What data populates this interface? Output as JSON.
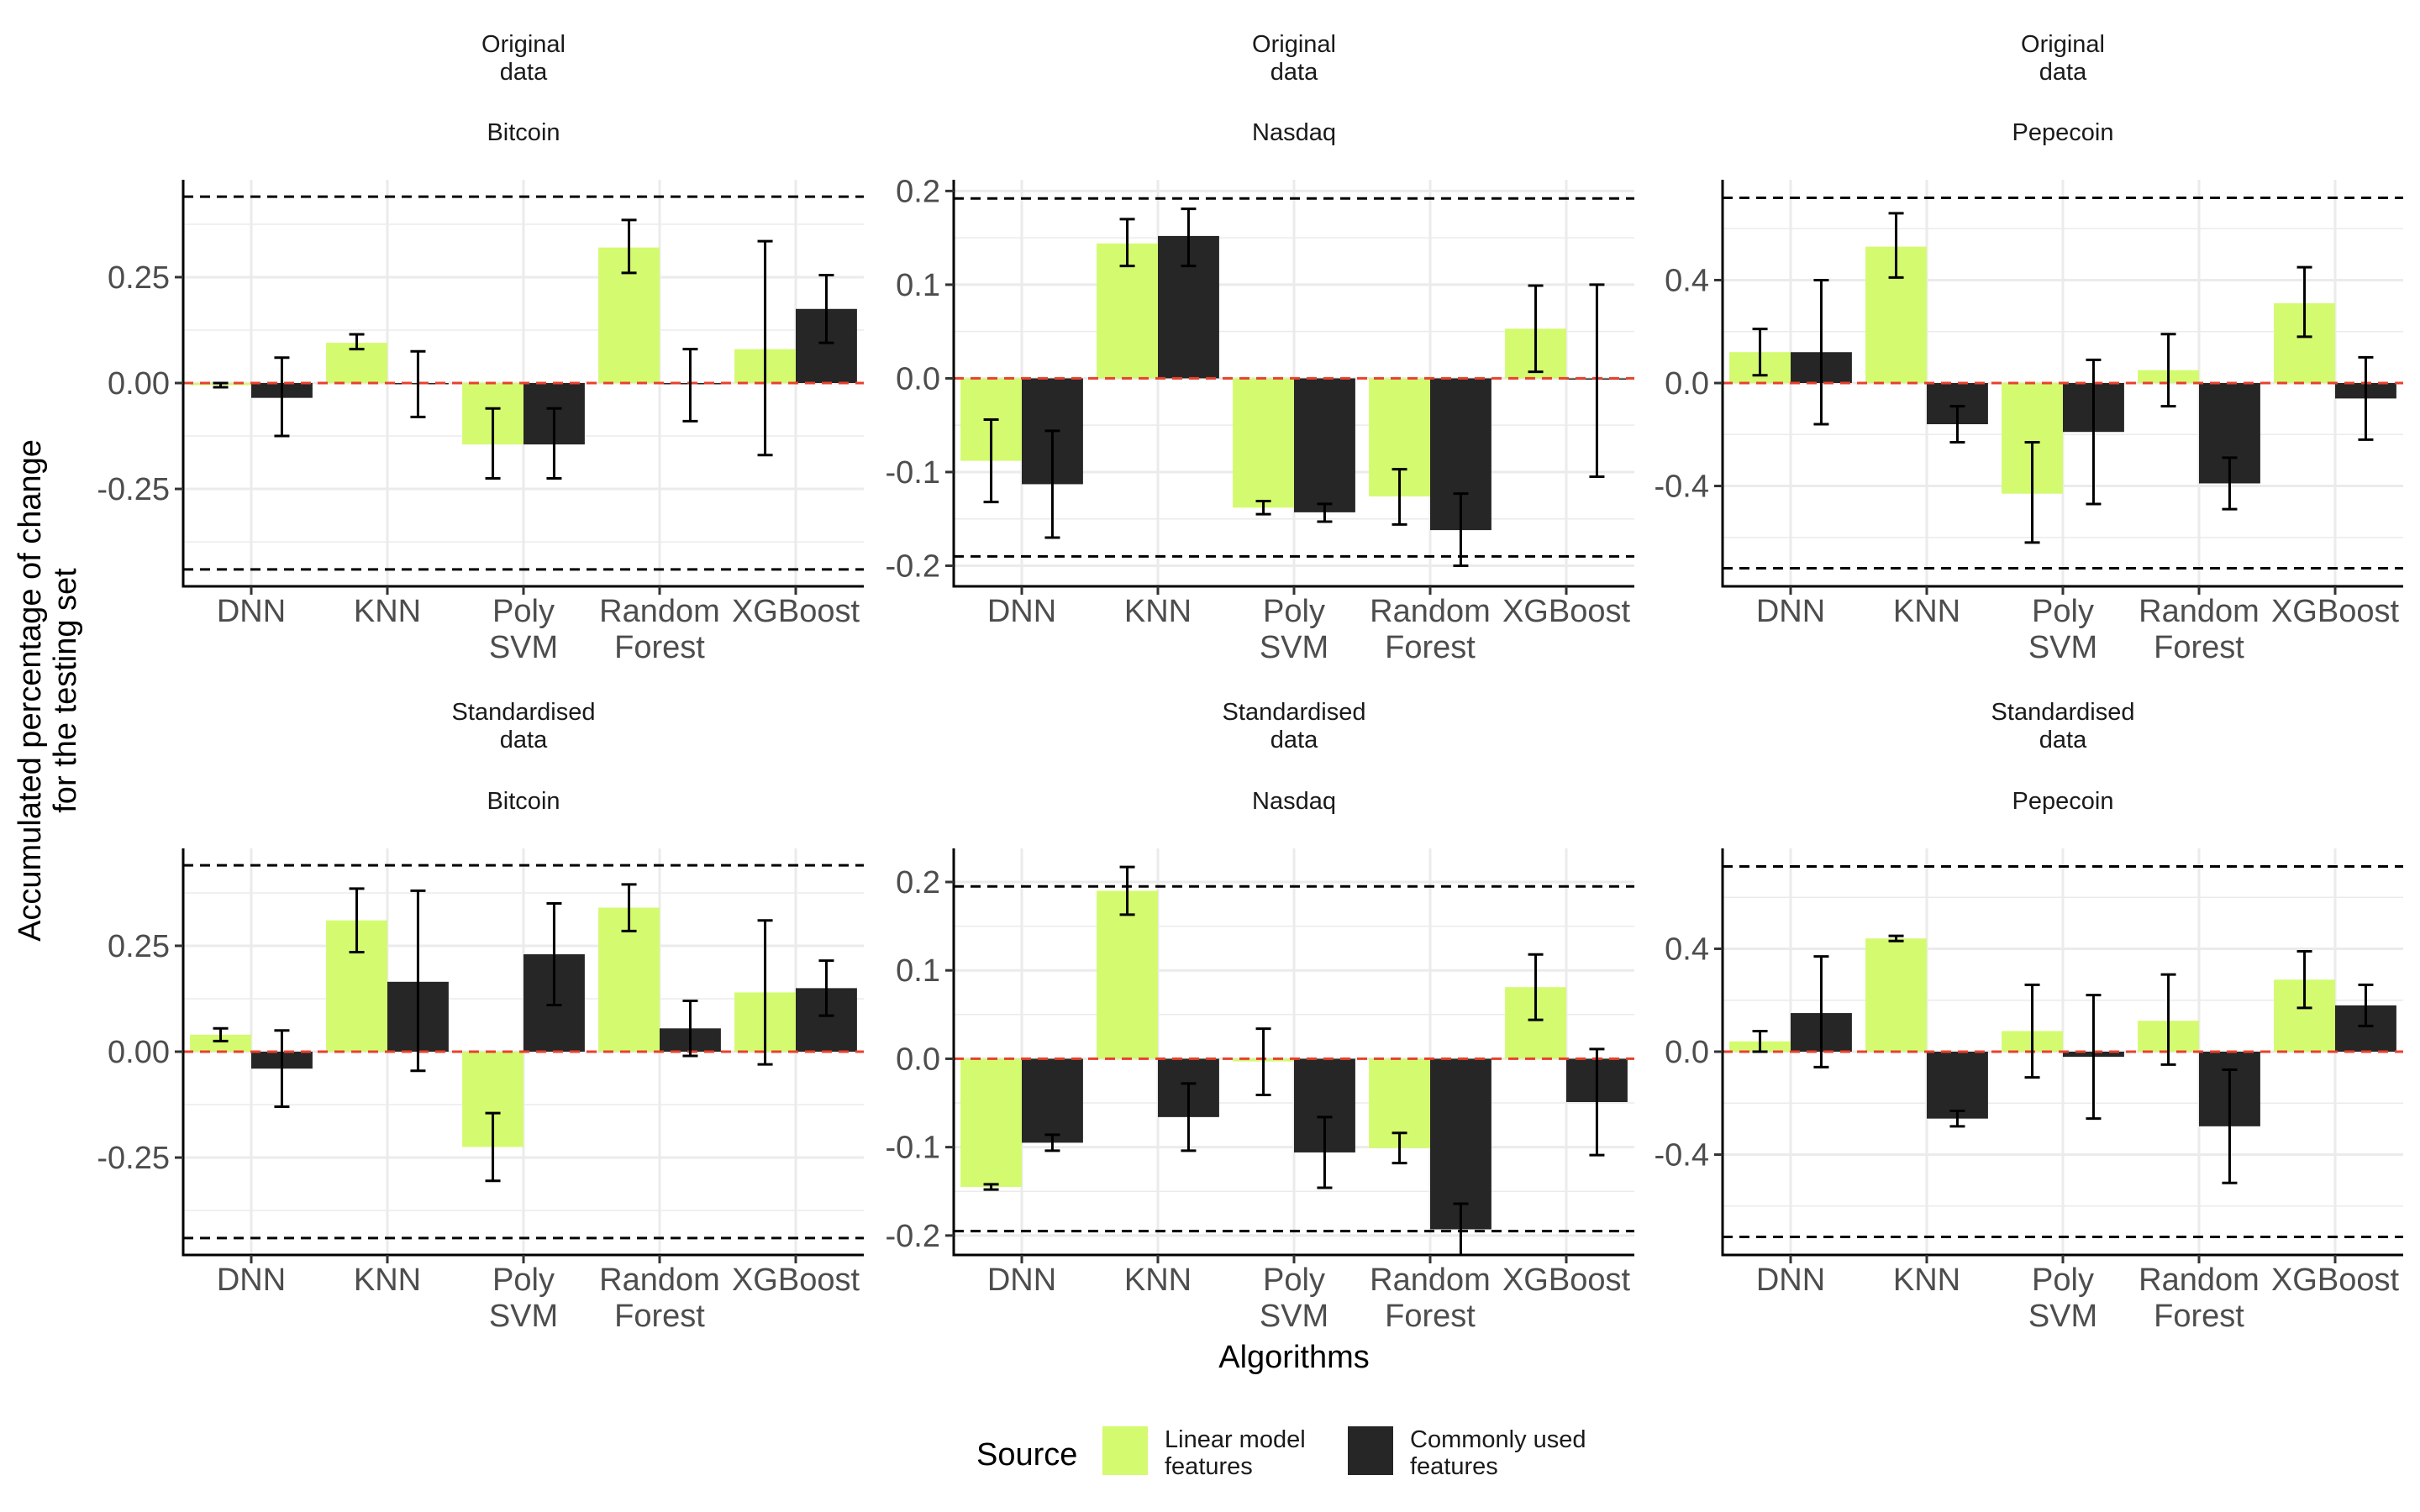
{
  "figure": {
    "xlabel": "Algorithms",
    "ylabel_lines": [
      "Accumulated percentage of change",
      "for the testing set"
    ],
    "colors": {
      "linear": "#d4fa6f",
      "common": "#262626",
      "zero_line": "#e8412c",
      "threshold_line": "#000000",
      "grid": "#ebebeb",
      "axis": "#000000"
    },
    "legend": {
      "title": "Source",
      "items": [
        {
          "key": "linear",
          "lines": [
            "Linear model",
            "features"
          ]
        },
        {
          "key": "common",
          "lines": [
            "Commonly used",
            "features"
          ]
        }
      ]
    }
  },
  "chart_data": [
    {
      "type": "bar",
      "group": "Original data",
      "group_lines": [
        "Original",
        "data"
      ],
      "title": "Bitcoin",
      "categories": [
        [
          "DNN"
        ],
        [
          "KNN"
        ],
        [
          "Poly",
          "SVM"
        ],
        [
          "Random",
          "Forest"
        ],
        [
          "XGBoost"
        ]
      ],
      "ylim": [
        -0.48,
        0.48
      ],
      "yticks": [
        -0.25,
        0.0,
        0.25
      ],
      "ytick_labels": [
        "-0.25",
        "0.00",
        "0.25"
      ],
      "minor_yticks": [
        -0.375,
        -0.125,
        0.125,
        0.375
      ],
      "thresholds": [
        0.44,
        -0.44
      ],
      "series": [
        {
          "name": "Linear model features",
          "key": "linear",
          "values": [
            -0.005,
            0.095,
            -0.145,
            0.32,
            0.08
          ],
          "err_low": [
            -0.01,
            0.08,
            -0.225,
            0.26,
            -0.17
          ],
          "err_high": [
            0.0,
            0.115,
            -0.06,
            0.385,
            0.335
          ]
        },
        {
          "name": "Commonly used features",
          "key": "common",
          "values": [
            -0.035,
            0.0,
            -0.145,
            -0.003,
            0.175
          ],
          "err_low": [
            -0.125,
            -0.08,
            -0.225,
            -0.09,
            0.095
          ],
          "err_high": [
            0.06,
            0.075,
            -0.06,
            0.08,
            0.255
          ]
        }
      ]
    },
    {
      "type": "bar",
      "group": "Original data",
      "group_lines": [
        "Original",
        "data"
      ],
      "title": "Nasdaq",
      "categories": [
        [
          "DNN"
        ],
        [
          "KNN"
        ],
        [
          "Poly",
          "SVM"
        ],
        [
          "Random",
          "Forest"
        ],
        [
          "XGBoost"
        ]
      ],
      "ylim": [
        -0.222,
        0.212
      ],
      "yticks": [
        -0.2,
        -0.1,
        0.0,
        0.1,
        0.2
      ],
      "ytick_labels": [
        "-0.2",
        "-0.1",
        "0.0",
        "0.1",
        "0.2"
      ],
      "minor_yticks": [
        -0.15,
        -0.05,
        0.05,
        0.15
      ],
      "thresholds": [
        0.192,
        -0.19
      ],
      "series": [
        {
          "name": "Linear model features",
          "key": "linear",
          "values": [
            -0.088,
            0.144,
            -0.138,
            -0.126,
            0.053
          ],
          "err_low": [
            -0.132,
            0.12,
            -0.145,
            -0.156,
            0.007
          ],
          "err_high": [
            -0.044,
            0.17,
            -0.131,
            -0.097,
            0.099
          ]
        },
        {
          "name": "Commonly used features",
          "key": "common",
          "values": [
            -0.113,
            0.152,
            -0.143,
            -0.162,
            -0.001
          ],
          "err_low": [
            -0.17,
            0.12,
            -0.153,
            -0.2,
            -0.105
          ],
          "err_high": [
            -0.056,
            0.181,
            -0.134,
            -0.123,
            0.1
          ]
        }
      ]
    },
    {
      "type": "bar",
      "group": "Original data",
      "group_lines": [
        "Original",
        "data"
      ],
      "title": "Pepecoin",
      "categories": [
        [
          "DNN"
        ],
        [
          "KNN"
        ],
        [
          "Poly",
          "SVM"
        ],
        [
          "Random",
          "Forest"
        ],
        [
          "XGBoost"
        ]
      ],
      "ylim": [
        -0.79,
        0.79
      ],
      "yticks": [
        -0.4,
        0.0,
        0.4
      ],
      "ytick_labels": [
        "-0.4",
        "0.0",
        "0.4"
      ],
      "minor_yticks": [
        -0.6,
        -0.2,
        0.2,
        0.6
      ],
      "thresholds": [
        0.72,
        -0.72
      ],
      "series": [
        {
          "name": "Linear model features",
          "key": "linear",
          "values": [
            0.12,
            0.53,
            -0.43,
            0.05,
            0.31
          ],
          "err_low": [
            0.03,
            0.41,
            -0.62,
            -0.09,
            0.18
          ],
          "err_high": [
            0.21,
            0.66,
            -0.23,
            0.19,
            0.45
          ]
        },
        {
          "name": "Commonly used features",
          "key": "common",
          "values": [
            0.12,
            -0.16,
            -0.19,
            -0.39,
            -0.06
          ],
          "err_low": [
            -0.16,
            -0.23,
            -0.47,
            -0.49,
            -0.22
          ],
          "err_high": [
            0.4,
            -0.09,
            0.09,
            -0.29,
            0.1
          ]
        }
      ]
    },
    {
      "type": "bar",
      "group": "Standardised data",
      "group_lines": [
        "Standardised",
        "data"
      ],
      "title": "Bitcoin",
      "categories": [
        [
          "DNN"
        ],
        [
          "KNN"
        ],
        [
          "Poly",
          "SVM"
        ],
        [
          "Random",
          "Forest"
        ],
        [
          "XGBoost"
        ]
      ],
      "ylim": [
        -0.48,
        0.48
      ],
      "yticks": [
        -0.25,
        0.0,
        0.25
      ],
      "ytick_labels": [
        "-0.25",
        "0.00",
        "0.25"
      ],
      "minor_yticks": [
        -0.375,
        -0.125,
        0.125,
        0.375
      ],
      "thresholds": [
        0.44,
        -0.44
      ],
      "series": [
        {
          "name": "Linear model features",
          "key": "linear",
          "values": [
            0.04,
            0.31,
            -0.225,
            0.34,
            0.14
          ],
          "err_low": [
            0.025,
            0.235,
            -0.305,
            0.285,
            -0.03
          ],
          "err_high": [
            0.055,
            0.385,
            -0.145,
            0.395,
            0.31
          ]
        },
        {
          "name": "Commonly used features",
          "key": "common",
          "values": [
            -0.04,
            0.165,
            0.23,
            0.055,
            0.15
          ],
          "err_low": [
            -0.13,
            -0.045,
            0.11,
            -0.01,
            0.085
          ],
          "err_high": [
            0.05,
            0.38,
            0.35,
            0.12,
            0.215
          ]
        }
      ]
    },
    {
      "type": "bar",
      "group": "Standardised data",
      "group_lines": [
        "Standardised",
        "data"
      ],
      "title": "Nasdaq",
      "categories": [
        [
          "DNN"
        ],
        [
          "KNN"
        ],
        [
          "Poly",
          "SVM"
        ],
        [
          "Random",
          "Forest"
        ],
        [
          "XGBoost"
        ]
      ],
      "ylim": [
        -0.222,
        0.238
      ],
      "yticks": [
        -0.2,
        -0.1,
        0.0,
        0.1,
        0.2
      ],
      "ytick_labels": [
        "-0.2",
        "-0.1",
        "0.0",
        "0.1",
        "0.2"
      ],
      "minor_yticks": [
        -0.15,
        -0.05,
        0.05,
        0.15
      ],
      "thresholds": [
        0.195,
        -0.195
      ],
      "series": [
        {
          "name": "Linear model features",
          "key": "linear",
          "values": [
            -0.145,
            0.19,
            -0.003,
            -0.101,
            0.081
          ],
          "err_low": [
            -0.148,
            0.163,
            -0.041,
            -0.118,
            0.044
          ],
          "err_high": [
            -0.142,
            0.217,
            0.034,
            -0.084,
            0.118
          ]
        },
        {
          "name": "Commonly used features",
          "key": "common",
          "values": [
            -0.095,
            -0.066,
            -0.106,
            -0.193,
            -0.049
          ],
          "err_low": [
            -0.104,
            -0.104,
            -0.146,
            -0.222,
            -0.109
          ],
          "err_high": [
            -0.086,
            -0.028,
            -0.066,
            -0.164,
            0.011
          ]
        }
      ]
    },
    {
      "type": "bar",
      "group": "Standardised data",
      "group_lines": [
        "Standardised",
        "data"
      ],
      "title": "Pepecoin",
      "categories": [
        [
          "DNN"
        ],
        [
          "KNN"
        ],
        [
          "Poly",
          "SVM"
        ],
        [
          "Random",
          "Forest"
        ],
        [
          "XGBoost"
        ]
      ],
      "ylim": [
        -0.79,
        0.79
      ],
      "yticks": [
        -0.4,
        0.0,
        0.4
      ],
      "ytick_labels": [
        "-0.4",
        "0.0",
        "0.4"
      ],
      "minor_yticks": [
        -0.6,
        -0.2,
        0.2,
        0.6
      ],
      "thresholds": [
        0.72,
        -0.72
      ],
      "series": [
        {
          "name": "Linear model features",
          "key": "linear",
          "values": [
            0.04,
            0.44,
            0.08,
            0.12,
            0.28
          ],
          "err_low": [
            0.0,
            0.43,
            -0.1,
            -0.05,
            0.17
          ],
          "err_high": [
            0.08,
            0.45,
            0.26,
            0.3,
            0.39
          ]
        },
        {
          "name": "Commonly used features",
          "key": "common",
          "values": [
            0.15,
            -0.26,
            -0.02,
            -0.29,
            0.18
          ],
          "err_low": [
            -0.06,
            -0.29,
            -0.26,
            -0.51,
            0.1
          ],
          "err_high": [
            0.37,
            -0.23,
            0.22,
            -0.07,
            0.26
          ]
        }
      ]
    }
  ]
}
